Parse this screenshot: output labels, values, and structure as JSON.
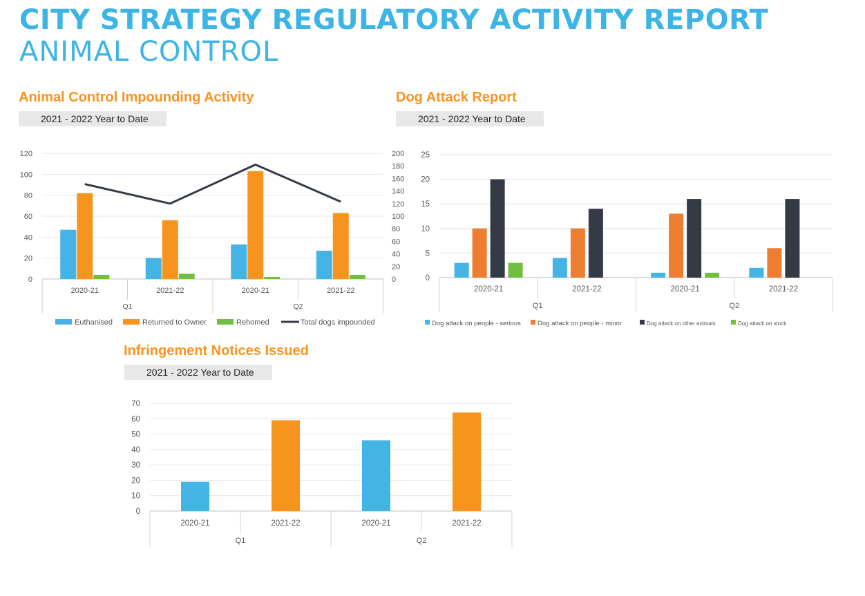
{
  "header": {
    "title": "CITY STRATEGY REGULATORY ACTIVITY REPORT",
    "subtitle": "ANIMAL CONTROL"
  },
  "colors": {
    "blue": "#44b4e4",
    "orange": "#f7941d",
    "orange_dark": "#ed7d31",
    "green": "#70bf41",
    "dark": "#343a46",
    "title_blue": "#3cb4e6"
  },
  "sections": {
    "impounding": {
      "title": "Animal Control Impounding Activity",
      "period": "2021 - 2022 Year to Date"
    },
    "dog_attack": {
      "title": "Dog Attack Report",
      "period": "2021 - 2022 Year to Date"
    },
    "infringement": {
      "title": "Infringement Notices Issued",
      "period": "2021 - 2022 Year to Date"
    }
  },
  "chart_data": [
    {
      "id": "impounding",
      "type": "bar",
      "categories": [
        "2020-21",
        "2021-22",
        "2020-21",
        "2021-22"
      ],
      "groups": [
        "Q1",
        "Q2"
      ],
      "ylim": [
        0,
        120
      ],
      "yticks": [
        "0",
        "20",
        "40",
        "60",
        "80",
        "100",
        "120"
      ],
      "y2lim": [
        0,
        200
      ],
      "y2ticks": [
        "0",
        "20",
        "40",
        "60",
        "80",
        "100",
        "120",
        "140",
        "160",
        "180",
        "200"
      ],
      "legend_position": "bottom",
      "series": [
        {
          "name": "Euthanised",
          "color": "#44b4e4",
          "values": [
            47,
            20,
            33,
            27
          ]
        },
        {
          "name": "Returned to Owner",
          "color": "#f7941d",
          "values": [
            82,
            56,
            103,
            63
          ]
        },
        {
          "name": "Rehomed",
          "color": "#70bf41",
          "values": [
            4,
            5,
            2,
            4
          ]
        }
      ],
      "line_series": {
        "name": "Total dogs impounded",
        "color": "#343a46",
        "axis": "secondary",
        "values": [
          151,
          120,
          182,
          123
        ]
      }
    },
    {
      "id": "dog_attack",
      "type": "bar",
      "categories": [
        "2020-21",
        "2021-22",
        "2020-21",
        "2021-22"
      ],
      "groups": [
        "Q1",
        "Q2"
      ],
      "ylim": [
        0,
        25
      ],
      "yticks": [
        "0",
        "5",
        "10",
        "15",
        "20",
        "25"
      ],
      "legend_position": "bottom",
      "series": [
        {
          "name": "Dog attack on people - serious",
          "color": "#44b4e4",
          "values": [
            3,
            4,
            1,
            2
          ]
        },
        {
          "name": "Dog attack on people - minor",
          "color": "#ed7d31",
          "values": [
            10,
            10,
            13,
            6
          ]
        },
        {
          "name": "Dog attack on other animals",
          "color": "#343a46",
          "values": [
            20,
            14,
            16,
            16
          ]
        },
        {
          "name": "Dog attack on stock",
          "color": "#70bf41",
          "values": [
            3,
            0,
            1,
            0
          ]
        }
      ]
    },
    {
      "id": "infringement",
      "type": "bar",
      "categories": [
        "2020-21",
        "2021-22",
        "2020-21",
        "2021-22"
      ],
      "groups": [
        "Q1",
        "Q2"
      ],
      "ylim": [
        0,
        70
      ],
      "yticks": [
        "0",
        "10",
        "20",
        "30",
        "40",
        "50",
        "60",
        "70"
      ],
      "values": [
        19,
        59,
        46,
        64
      ],
      "bar_colors": [
        "#44b4e4",
        "#f7941d",
        "#44b4e4",
        "#f7941d"
      ]
    }
  ]
}
